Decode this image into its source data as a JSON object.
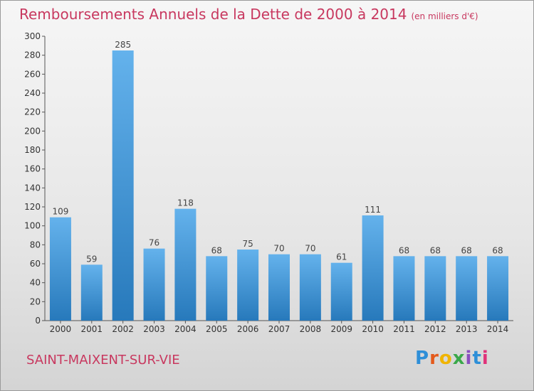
{
  "title": "Remboursements Annuels de la Dette de 2000 à 2014",
  "unit": "(en milliers d'€)",
  "town": "SAINT-MAIXENT-SUR-VIE",
  "logo_text": "Proxiti",
  "colors": {
    "title": "#c8385f",
    "bar_top": "#64b2ec",
    "bar_bottom": "#2779bb",
    "axis": "#444444"
  },
  "chart_data": {
    "type": "bar",
    "categories": [
      "2000",
      "2001",
      "2002",
      "2003",
      "2004",
      "2005",
      "2006",
      "2007",
      "2008",
      "2009",
      "2010",
      "2011",
      "2012",
      "2013",
      "2014"
    ],
    "values": [
      109,
      59,
      285,
      76,
      118,
      68,
      75,
      70,
      70,
      61,
      111,
      68,
      68,
      68,
      68
    ],
    "ylim": [
      0,
      300
    ],
    "yticks": [
      0,
      20,
      40,
      60,
      80,
      100,
      120,
      140,
      160,
      180,
      200,
      220,
      240,
      260,
      280,
      300
    ],
    "grid": false,
    "xlabel": "",
    "ylabel": ""
  }
}
